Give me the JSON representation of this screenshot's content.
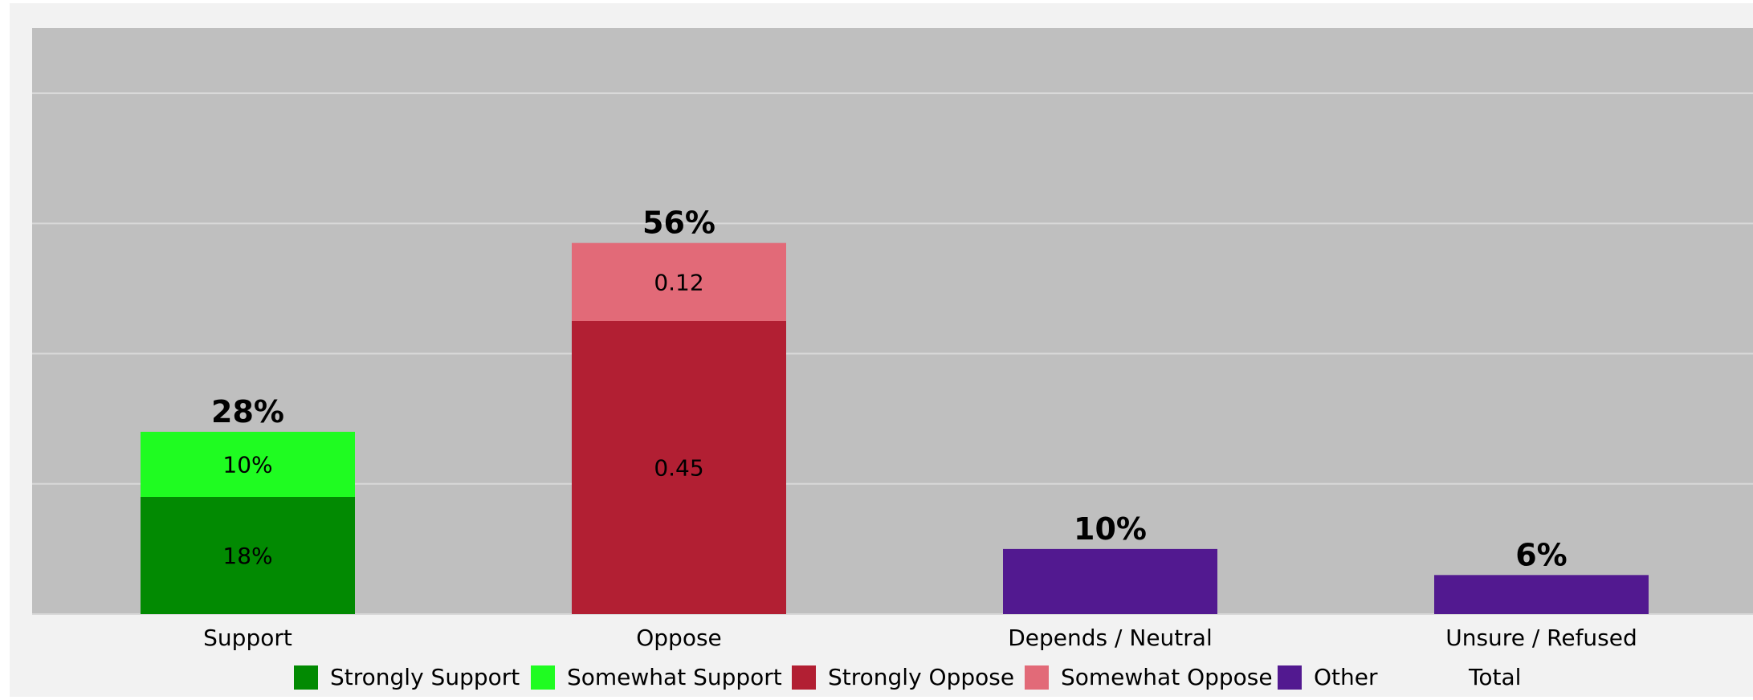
{
  "chart_data": {
    "type": "bar",
    "stacked": true,
    "categories": [
      "Support",
      "Oppose",
      "Depends / Neutral",
      "Unsure / Refused"
    ],
    "series": [
      {
        "name": "Strongly Support",
        "color": "#028a02",
        "values": [
          18,
          0,
          0,
          0
        ],
        "labels": [
          "18%",
          "",
          "",
          ""
        ]
      },
      {
        "name": "Somewhat Support",
        "color": "#1ffc21",
        "values": [
          10,
          0,
          0,
          0
        ],
        "labels": [
          "10%",
          "",
          "",
          ""
        ]
      },
      {
        "name": "Strongly Oppose",
        "color": "#b21f33",
        "values": [
          0,
          45,
          0,
          0
        ],
        "labels": [
          "",
          "0.45",
          "",
          ""
        ]
      },
      {
        "name": "Somewhat Oppose",
        "color": "#e26a78",
        "values": [
          0,
          12,
          0,
          0
        ],
        "labels": [
          "",
          "0.12",
          "",
          ""
        ]
      },
      {
        "name": "Other",
        "color": "#521990",
        "values": [
          0,
          0,
          10,
          6
        ],
        "labels": [
          "",
          "",
          "",
          ""
        ]
      }
    ],
    "totals": {
      "name": "Total",
      "values": [
        28,
        56,
        10,
        6
      ],
      "labels": [
        "28%",
        "56%",
        "10%",
        "6%"
      ]
    },
    "ylim": [
      0,
      90
    ],
    "grid": true,
    "legend_position": "bottom",
    "colors": {
      "page_background": "#f2f2f2",
      "plot_background": "#bfbfbf",
      "gridline": "#d9d9d9"
    }
  }
}
